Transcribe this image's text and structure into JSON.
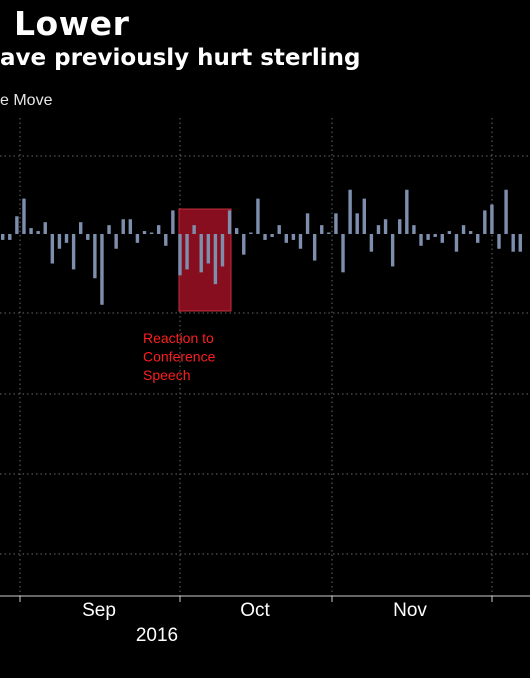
{
  "header": {
    "title": "Lower",
    "subtitle": "ave previously hurt sterling",
    "legend_label": "e Move"
  },
  "colors": {
    "background": "#000000",
    "bar": "#7e8fae",
    "highlight_fill": "#8e0f20",
    "highlight_stroke": "#c0303f",
    "annotation": "#ff1e1e",
    "grid": "#666666"
  },
  "chart_data": {
    "type": "bar",
    "title": "Lower",
    "subtitle": "ave previously hurt sterling",
    "x_tick_labels": [
      "Sep",
      "Oct",
      "Nov"
    ],
    "x_year_label": "2016",
    "grid": "dotted",
    "values": [
      -2,
      -2,
      6,
      12,
      2,
      1,
      4,
      -10,
      -5,
      -3,
      -12,
      4,
      -2,
      -15,
      -24,
      3,
      -5,
      5,
      5,
      -3,
      1,
      0,
      3,
      -4,
      8,
      -14,
      -12,
      3,
      -13,
      -10,
      -17,
      -11,
      8,
      2,
      -7,
      0,
      12,
      -2,
      -1,
      3,
      -3,
      -2,
      -5,
      7,
      -9,
      3,
      0,
      7,
      -13,
      15,
      7,
      12,
      -6,
      3,
      5,
      -11,
      5,
      15,
      3,
      -4,
      -2,
      -1,
      -3,
      1,
      -6,
      3,
      1,
      -3,
      8,
      10,
      -5,
      15,
      -6,
      -6
    ],
    "highlight": {
      "label": "Reaction to Conference Speech",
      "lines": [
        "Reaction to",
        "Conference",
        "Speech"
      ]
    }
  }
}
